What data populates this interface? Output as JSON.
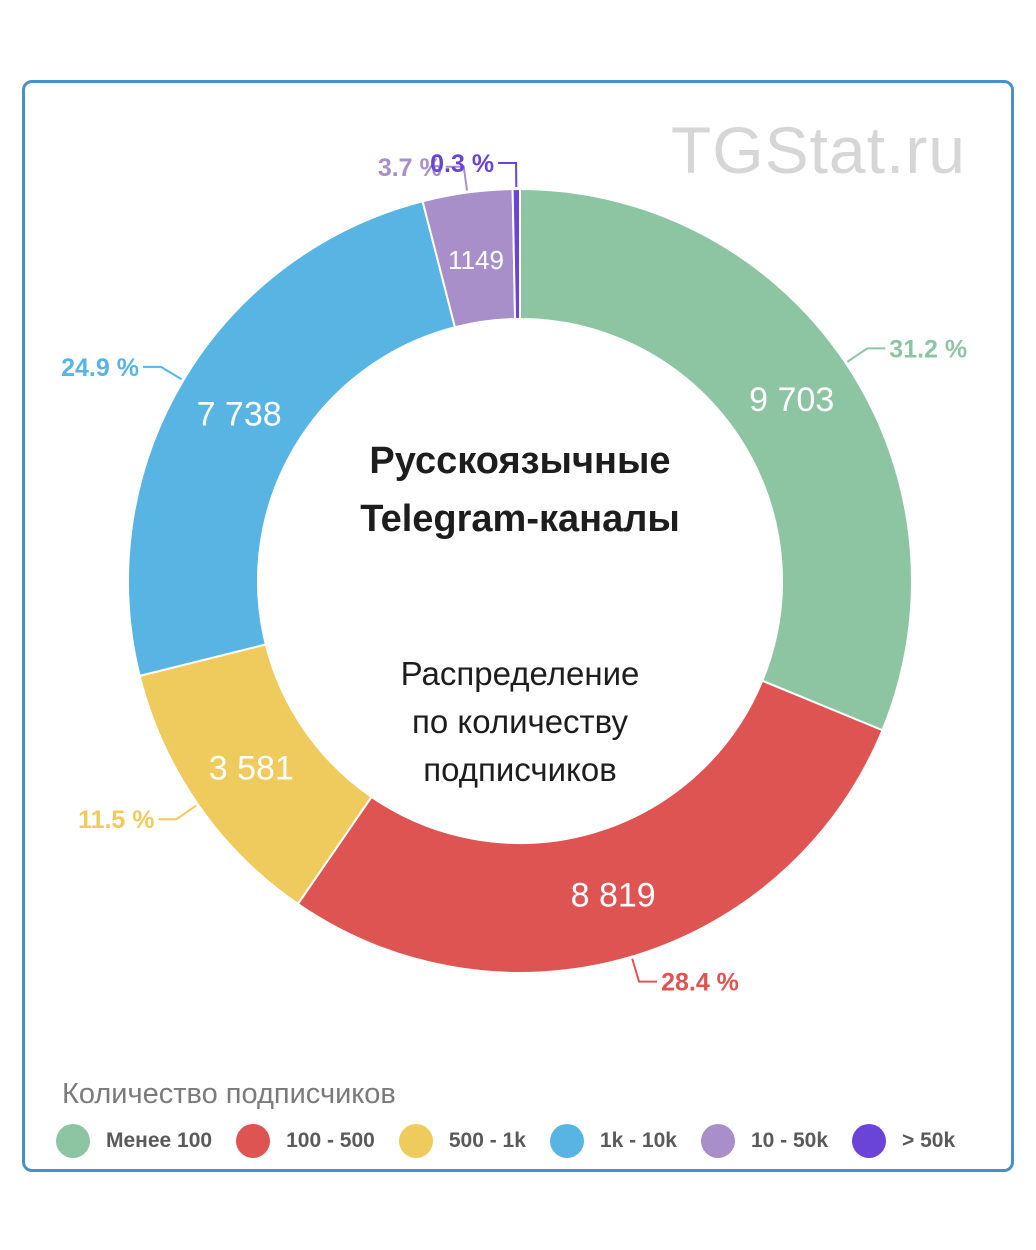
{
  "watermark": "TGStat.ru",
  "center": {
    "title_line1": "Русскоязычные",
    "title_line2": "Telegram-каналы",
    "subtitle_line1": "Распределение",
    "subtitle_line2": "по количеству",
    "subtitle_line3": "подписчиков"
  },
  "chart_data": {
    "type": "pie",
    "variant": "donut",
    "legend_title": "Количество подписчиков",
    "legend_placement": "bottom-left",
    "categories": [
      "Менее 100",
      "100 - 500",
      "500 - 1k",
      "1k - 10k",
      "10 - 50k",
      "> 50k"
    ],
    "values": [
      9703,
      8819,
      3581,
      7738,
      1149,
      93
    ],
    "value_labels": [
      "9 703",
      "8 819",
      "3 581",
      "7 738",
      "1149",
      ""
    ],
    "percent_labels": [
      "31.2 %",
      "28.4 %",
      "11.5 %",
      "24.9 %",
      "3.7 %",
      "0.3 %"
    ],
    "colors": [
      "#8dc5a3",
      "#de5453",
      "#efca5c",
      "#58b4e3",
      "#a98fca",
      "#6a44d6"
    ]
  }
}
